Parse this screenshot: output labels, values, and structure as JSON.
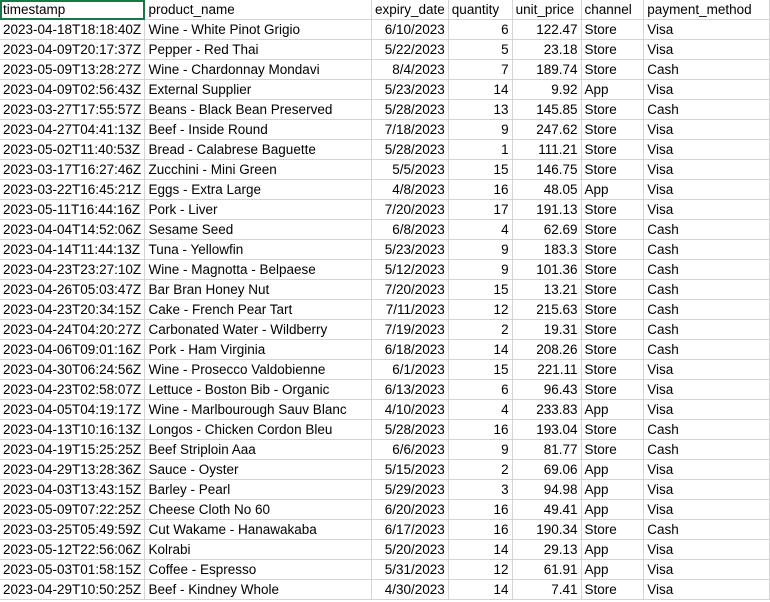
{
  "headers": [
    "timestamp",
    "product_name",
    "expiry_date",
    "quantity",
    "unit_price",
    "channel",
    "payment_method"
  ],
  "rows": [
    [
      "2023-04-18T18:18:40Z",
      "Wine - White Pinot Grigio",
      "6/10/2023",
      "6",
      "122.47",
      "Store",
      "Visa"
    ],
    [
      "2023-04-09T20:17:37Z",
      "Pepper - Red Thai",
      "5/22/2023",
      "5",
      "23.18",
      "Store",
      "Visa"
    ],
    [
      "2023-05-09T13:28:27Z",
      "Wine - Chardonnay Mondavi",
      "8/4/2023",
      "7",
      "189.74",
      "Store",
      "Cash"
    ],
    [
      "2023-04-09T02:56:43Z",
      "External Supplier",
      "5/23/2023",
      "14",
      "9.92",
      "App",
      "Visa"
    ],
    [
      "2023-03-27T17:55:57Z",
      "Beans - Black Bean Preserved",
      "5/28/2023",
      "13",
      "145.85",
      "Store",
      "Cash"
    ],
    [
      "2023-04-27T04:41:13Z",
      "Beef - Inside Round",
      "7/18/2023",
      "9",
      "247.62",
      "Store",
      "Visa"
    ],
    [
      "2023-05-02T11:40:53Z",
      "Bread - Calabrese Baguette",
      "5/28/2023",
      "1",
      "111.21",
      "Store",
      "Visa"
    ],
    [
      "2023-03-17T16:27:46Z",
      "Zucchini - Mini Green",
      "5/5/2023",
      "15",
      "146.75",
      "Store",
      "Visa"
    ],
    [
      "2023-03-22T16:45:21Z",
      "Eggs - Extra Large",
      "4/8/2023",
      "16",
      "48.05",
      "App",
      "Visa"
    ],
    [
      "2023-05-11T16:44:16Z",
      "Pork - Liver",
      "7/20/2023",
      "17",
      "191.13",
      "Store",
      "Visa"
    ],
    [
      "2023-04-04T14:52:06Z",
      "Sesame Seed",
      "6/8/2023",
      "4",
      "62.69",
      "Store",
      "Cash"
    ],
    [
      "2023-04-14T11:44:13Z",
      "Tuna - Yellowfin",
      "5/23/2023",
      "9",
      "183.3",
      "Store",
      "Cash"
    ],
    [
      "2023-04-23T23:27:10Z",
      "Wine - Magnotta - Belpaese",
      "5/12/2023",
      "9",
      "101.36",
      "Store",
      "Cash"
    ],
    [
      "2023-04-26T05:03:47Z",
      "Bar Bran Honey Nut",
      "7/20/2023",
      "15",
      "13.21",
      "Store",
      "Cash"
    ],
    [
      "2023-04-23T20:34:15Z",
      "Cake - French Pear Tart",
      "7/11/2023",
      "12",
      "215.63",
      "Store",
      "Cash"
    ],
    [
      "2023-04-24T04:20:27Z",
      "Carbonated Water - Wildberry",
      "7/19/2023",
      "2",
      "19.31",
      "Store",
      "Cash"
    ],
    [
      "2023-04-06T09:01:16Z",
      "Pork - Ham Virginia",
      "6/18/2023",
      "14",
      "208.26",
      "Store",
      "Cash"
    ],
    [
      "2023-04-30T06:24:56Z",
      "Wine - Prosecco Valdobienne",
      "6/1/2023",
      "15",
      "221.11",
      "Store",
      "Visa"
    ],
    [
      "2023-04-23T02:58:07Z",
      "Lettuce - Boston Bib - Organic",
      "6/13/2023",
      "6",
      "96.43",
      "Store",
      "Visa"
    ],
    [
      "2023-04-05T04:19:17Z",
      "Wine - Marlbourough Sauv Blanc",
      "4/10/2023",
      "4",
      "233.83",
      "App",
      "Visa"
    ],
    [
      "2023-04-13T10:16:13Z",
      "Longos - Chicken Cordon Bleu",
      "5/28/2023",
      "16",
      "193.04",
      "Store",
      "Cash"
    ],
    [
      "2023-04-19T15:25:25Z",
      "Beef Striploin Aaa",
      "6/6/2023",
      "9",
      "81.77",
      "Store",
      "Cash"
    ],
    [
      "2023-04-29T13:28:36Z",
      "Sauce - Oyster",
      "5/15/2023",
      "2",
      "69.06",
      "App",
      "Visa"
    ],
    [
      "2023-04-03T13:43:15Z",
      "Barley - Pearl",
      "5/29/2023",
      "3",
      "94.98",
      "App",
      "Visa"
    ],
    [
      "2023-05-09T07:22:25Z",
      "Cheese Cloth No 60",
      "6/20/2023",
      "16",
      "49.41",
      "App",
      "Visa"
    ],
    [
      "2023-03-25T05:49:59Z",
      "Cut Wakame - Hanawakaba",
      "6/17/2023",
      "16",
      "190.34",
      "Store",
      "Cash"
    ],
    [
      "2023-05-12T22:56:06Z",
      "Kolrabi",
      "5/20/2023",
      "14",
      "29.13",
      "App",
      "Visa"
    ],
    [
      "2023-05-03T01:58:15Z",
      "Coffee - Espresso",
      "5/31/2023",
      "12",
      "61.91",
      "App",
      "Visa"
    ],
    [
      "2023-04-29T10:50:25Z",
      "Beef - Kindney Whole",
      "4/30/2023",
      "14",
      "7.41",
      "Store",
      "Visa"
    ]
  ]
}
